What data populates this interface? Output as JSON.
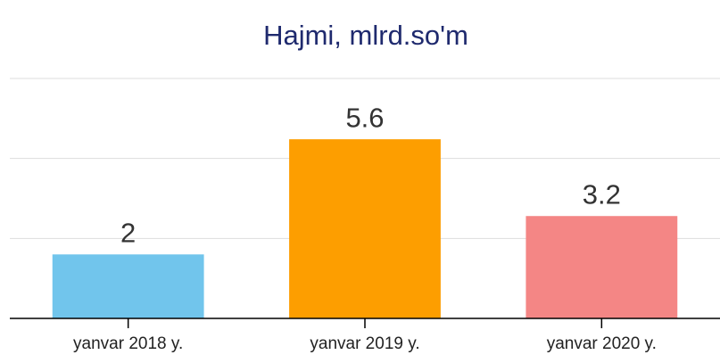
{
  "chart_data": {
    "type": "bar",
    "title": "Hajmi, mlrd.so'm",
    "categories": [
      "yanvar 2018 y.",
      "yanvar 2019 y.",
      "yanvar 2020 y."
    ],
    "values": [
      2,
      5.6,
      3.2
    ],
    "colors": [
      "#71c5ec",
      "#fd9e00",
      "#f48685"
    ],
    "ylim": [
      0,
      7.5
    ],
    "yticks": [
      0,
      2.5,
      5,
      7.5
    ],
    "grid": true
  }
}
